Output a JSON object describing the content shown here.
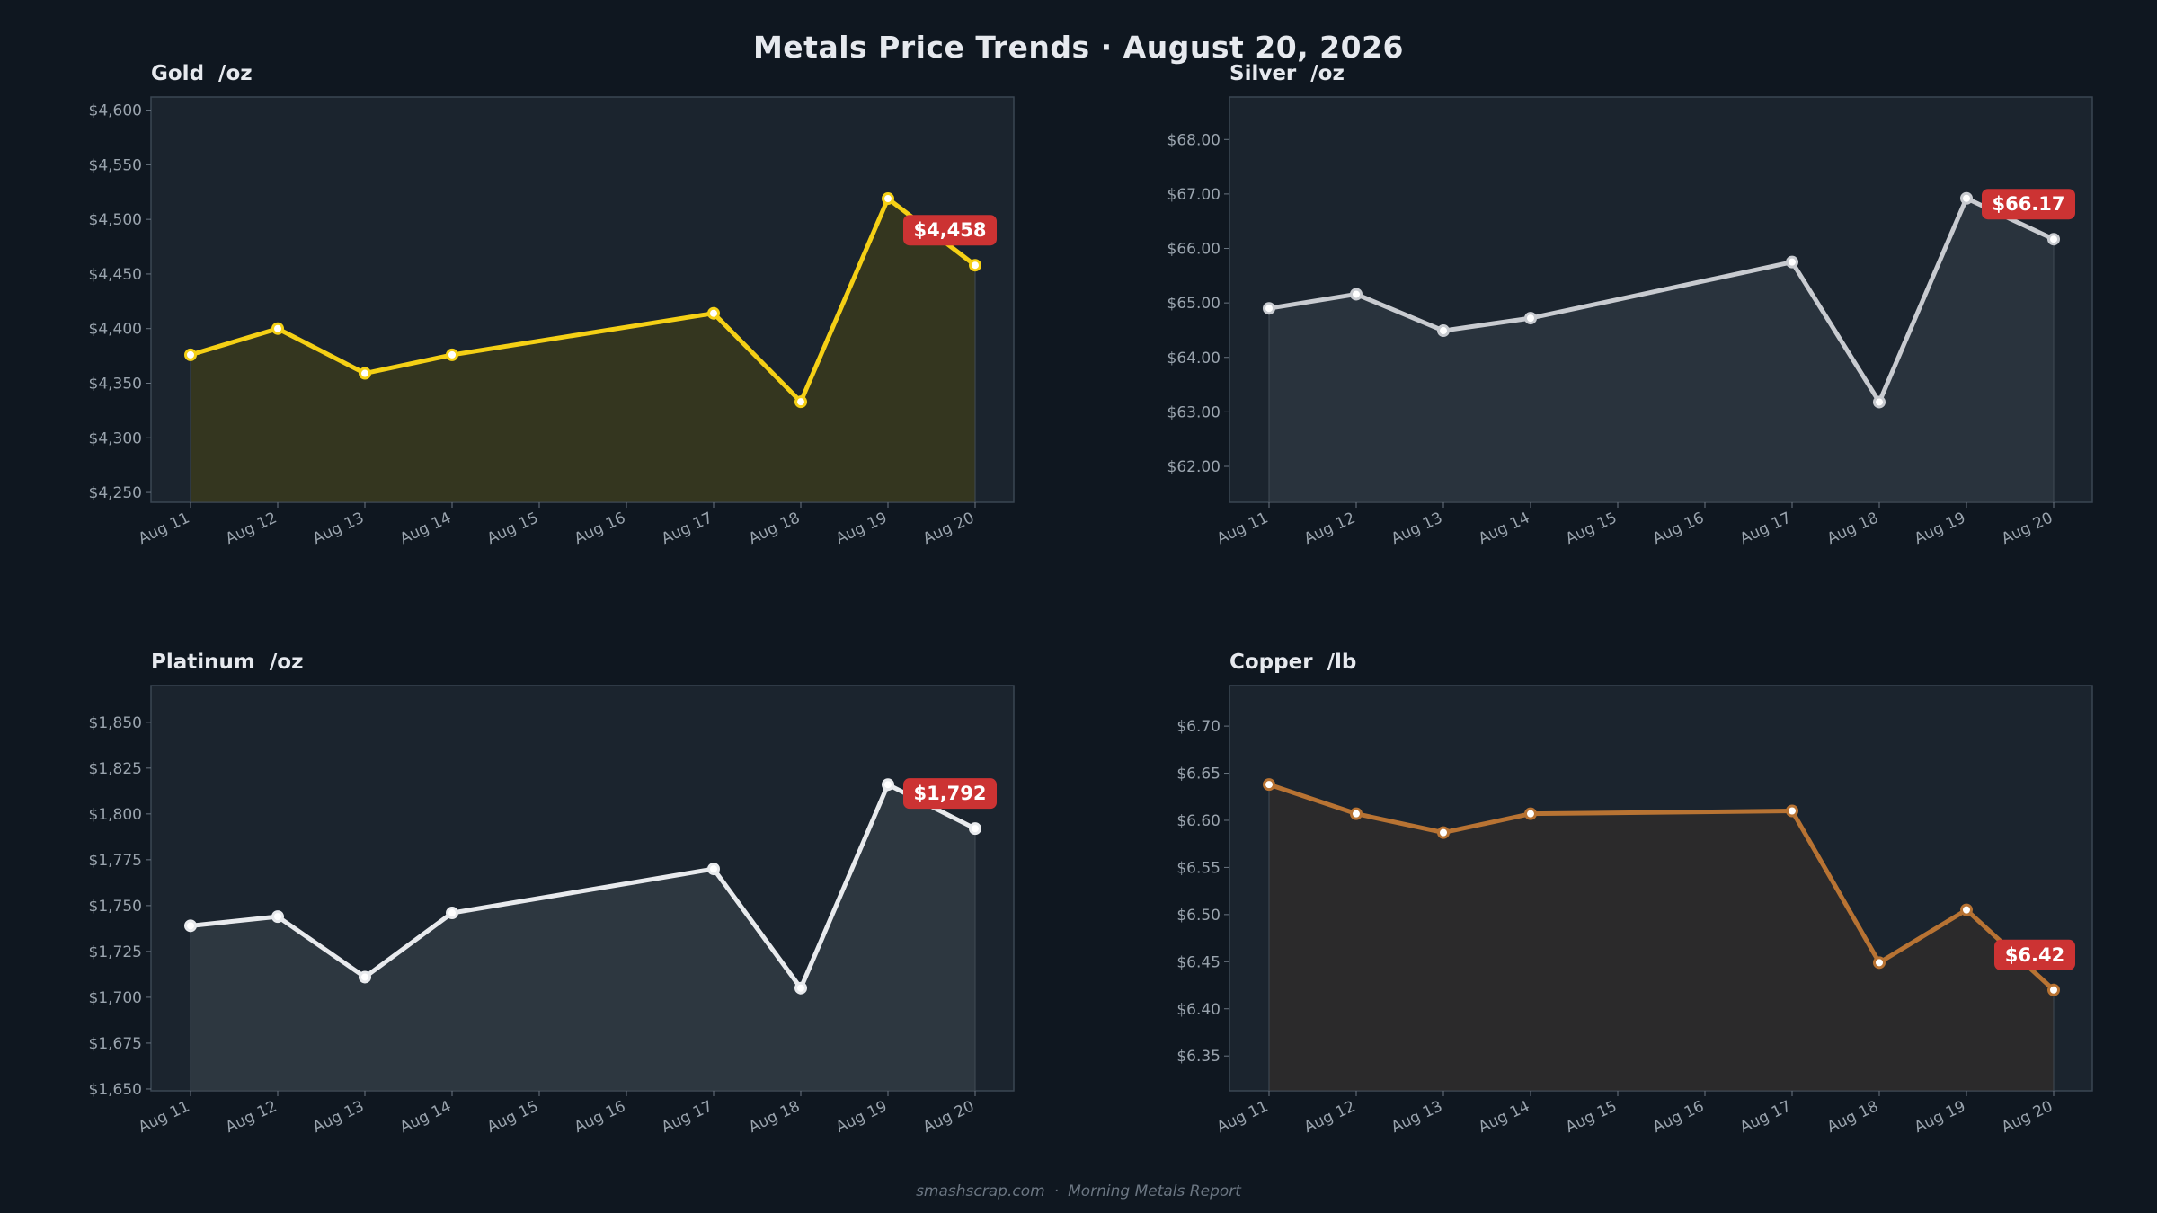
{
  "title": "Metals Price Trends  ·  August 20, 2026",
  "footer": {
    "source": "smashscrap.com",
    "separator": "·",
    "report": "Morning Metals Report"
  },
  "colors": {
    "background": "#0f1720",
    "plot_background": "#1b242e",
    "badge": "#cc3333",
    "gold": "#f5d015",
    "silver": "#c8cbd0",
    "platinum": "#e8eaed",
    "copper": "#b87333"
  },
  "chart_data": [
    {
      "type": "area",
      "title": "Gold  /oz",
      "color": "#f5d015",
      "fill": "#34361f",
      "x": [
        "Aug 11",
        "Aug 12",
        "Aug 13",
        "Aug 14",
        "Aug 15",
        "Aug 16",
        "Aug 17",
        "Aug 18",
        "Aug 19",
        "Aug 20"
      ],
      "points": [
        {
          "x": "Aug 11",
          "y": 4376
        },
        {
          "x": "Aug 12",
          "y": 4400
        },
        {
          "x": "Aug 13",
          "y": 4359
        },
        {
          "x": "Aug 14",
          "y": 4376
        },
        {
          "x": "Aug 17",
          "y": 4414
        },
        {
          "x": "Aug 18",
          "y": 4333
        },
        {
          "x": "Aug 19",
          "y": 4519
        },
        {
          "x": "Aug 20",
          "y": 4458
        }
      ],
      "yticks": [
        4250,
        4300,
        4350,
        4400,
        4450,
        4500,
        4550,
        4600
      ],
      "ytick_labels": [
        "$4,250",
        "$4,300",
        "$4,350",
        "$4,400",
        "$4,450",
        "$4,500",
        "$4,550",
        "$4,600"
      ],
      "ylim": [
        4241,
        4612
      ],
      "grid": false,
      "annotation": "$4,458"
    },
    {
      "type": "area",
      "title": "Silver  /oz",
      "color": "#c8cbd0",
      "fill": "#29333d",
      "x": [
        "Aug 11",
        "Aug 12",
        "Aug 13",
        "Aug 14",
        "Aug 15",
        "Aug 16",
        "Aug 17",
        "Aug 18",
        "Aug 19",
        "Aug 20"
      ],
      "points": [
        {
          "x": "Aug 11",
          "y": 64.9
        },
        {
          "x": "Aug 12",
          "y": 65.16
        },
        {
          "x": "Aug 13",
          "y": 64.49
        },
        {
          "x": "Aug 14",
          "y": 64.72
        },
        {
          "x": "Aug 17",
          "y": 65.75
        },
        {
          "x": "Aug 18",
          "y": 63.18
        },
        {
          "x": "Aug 19",
          "y": 66.92
        },
        {
          "x": "Aug 20",
          "y": 66.17
        }
      ],
      "yticks": [
        62,
        63,
        64,
        65,
        66,
        67,
        68
      ],
      "ytick_labels": [
        "$62.00",
        "$63.00",
        "$64.00",
        "$65.00",
        "$66.00",
        "$67.00",
        "$68.00"
      ],
      "ylim": [
        61.34,
        68.78
      ],
      "grid": false,
      "annotation": "$66.17"
    },
    {
      "type": "area",
      "title": "Platinum  /oz",
      "color": "#e8eaed",
      "fill": "#2d3740",
      "x": [
        "Aug 11",
        "Aug 12",
        "Aug 13",
        "Aug 14",
        "Aug 15",
        "Aug 16",
        "Aug 17",
        "Aug 18",
        "Aug 19",
        "Aug 20"
      ],
      "points": [
        {
          "x": "Aug 11",
          "y": 1739
        },
        {
          "x": "Aug 12",
          "y": 1744
        },
        {
          "x": "Aug 13",
          "y": 1711
        },
        {
          "x": "Aug 14",
          "y": 1746
        },
        {
          "x": "Aug 17",
          "y": 1770
        },
        {
          "x": "Aug 18",
          "y": 1705
        },
        {
          "x": "Aug 19",
          "y": 1816
        },
        {
          "x": "Aug 20",
          "y": 1792
        }
      ],
      "yticks": [
        1650,
        1675,
        1700,
        1725,
        1750,
        1775,
        1800,
        1825,
        1850
      ],
      "ytick_labels": [
        "$1,650",
        "$1,675",
        "$1,700",
        "$1,725",
        "$1,750",
        "$1,775",
        "$1,800",
        "$1,825",
        "$1,850"
      ],
      "ylim": [
        1649,
        1870
      ],
      "grid": false,
      "annotation": "$1,792"
    },
    {
      "type": "area",
      "title": "Copper  /lb",
      "color": "#b87333",
      "fill": "#2b2a2b",
      "x": [
        "Aug 11",
        "Aug 12",
        "Aug 13",
        "Aug 14",
        "Aug 15",
        "Aug 16",
        "Aug 17",
        "Aug 18",
        "Aug 19",
        "Aug 20"
      ],
      "points": [
        {
          "x": "Aug 11",
          "y": 6.638
        },
        {
          "x": "Aug 12",
          "y": 6.607
        },
        {
          "x": "Aug 13",
          "y": 6.587
        },
        {
          "x": "Aug 14",
          "y": 6.607
        },
        {
          "x": "Aug 17",
          "y": 6.61
        },
        {
          "x": "Aug 18",
          "y": 6.449
        },
        {
          "x": "Aug 19",
          "y": 6.505
        },
        {
          "x": "Aug 20",
          "y": 6.42
        }
      ],
      "yticks": [
        6.35,
        6.4,
        6.45,
        6.5,
        6.55,
        6.6,
        6.65,
        6.7
      ],
      "ytick_labels": [
        "$6.35",
        "$6.40",
        "$6.45",
        "$6.50",
        "$6.55",
        "$6.60",
        "$6.65",
        "$6.70"
      ],
      "ylim": [
        6.313,
        6.743
      ],
      "grid": false,
      "annotation": "$6.42"
    }
  ]
}
